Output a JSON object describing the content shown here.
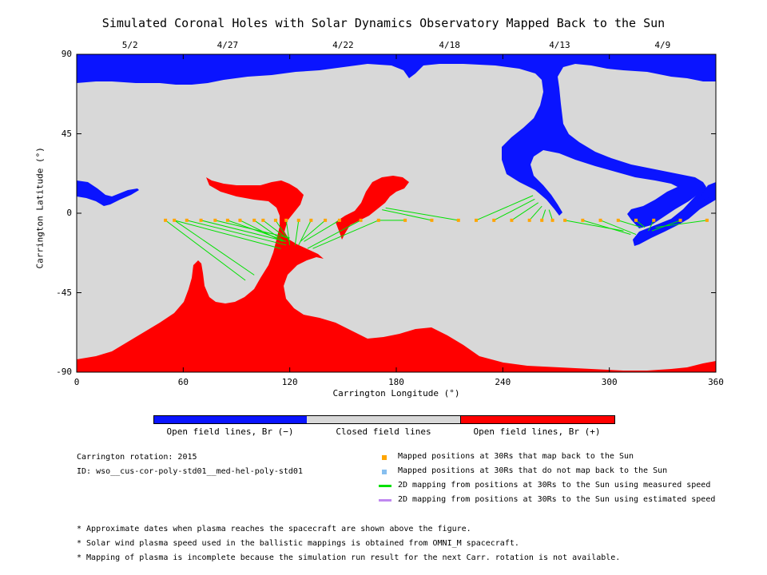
{
  "chart_data": {
    "type": "map",
    "title": "Simulated Coronal Holes with Solar Dynamics Observatory Mapped Back to the Sun",
    "xlabel": "Carrington Longitude (°)",
    "ylabel": "Carrington Latitude (°)",
    "xlim": [
      0,
      360
    ],
    "ylim": [
      -90,
      90
    ],
    "x_ticks": [
      "0",
      "60",
      "120",
      "180",
      "240",
      "300",
      "360"
    ],
    "y_ticks": [
      "90",
      "45",
      "0",
      "-45",
      "-90"
    ],
    "top_dates": [
      {
        "lon": 30,
        "label": "5/2"
      },
      {
        "lon": 85,
        "label": "4/27"
      },
      {
        "lon": 150,
        "label": "4/22"
      },
      {
        "lon": 210,
        "label": "4/18"
      },
      {
        "lon": 272,
        "label": "4/13"
      },
      {
        "lon": 330,
        "label": "4/9"
      }
    ],
    "colors": {
      "open_negative": "#0a14ff",
      "closed": "#d8d8d8",
      "open_positive": "#ff0000",
      "mapped_point": "#ffa500",
      "unmapped_point": "#87bfef",
      "measured_line": "#00e000",
      "estimated_line": "#c088f0"
    },
    "measured_mappings": [
      {
        "from": [
          50,
          -4
        ],
        "to": [
          95,
          -38
        ]
      },
      {
        "from": [
          55,
          -4
        ],
        "to": [
          100,
          -35
        ]
      },
      {
        "from": [
          55,
          -4
        ],
        "to": [
          115,
          -20
        ]
      },
      {
        "from": [
          62,
          -4
        ],
        "to": [
          118,
          -18
        ]
      },
      {
        "from": [
          70,
          -4
        ],
        "to": [
          118,
          -16
        ]
      },
      {
        "from": [
          78,
          -4
        ],
        "to": [
          120,
          -14
        ]
      },
      {
        "from": [
          85,
          -4
        ],
        "to": [
          113,
          -14
        ]
      },
      {
        "from": [
          92,
          -4
        ],
        "to": [
          116,
          -16
        ]
      },
      {
        "from": [
          100,
          -4
        ],
        "to": [
          117,
          -16
        ]
      },
      {
        "from": [
          105,
          -4
        ],
        "to": [
          118,
          -14
        ]
      },
      {
        "from": [
          112,
          -4
        ],
        "to": [
          120,
          -16
        ]
      },
      {
        "from": [
          118,
          -4
        ],
        "to": [
          120,
          -18
        ]
      },
      {
        "from": [
          125,
          -4
        ],
        "to": [
          123,
          -18
        ]
      },
      {
        "from": [
          132,
          -4
        ],
        "to": [
          125,
          -18
        ]
      },
      {
        "from": [
          140,
          -4
        ],
        "to": [
          126,
          -16
        ]
      },
      {
        "from": [
          148,
          -4
        ],
        "to": [
          128,
          -16
        ]
      },
      {
        "from": [
          160,
          -4
        ],
        "to": [
          130,
          -20
        ]
      },
      {
        "from": [
          170,
          -4
        ],
        "to": [
          133,
          -20
        ]
      },
      {
        "from": [
          185,
          -4
        ],
        "to": [
          170,
          -4
        ]
      },
      {
        "from": [
          200,
          -4
        ],
        "to": [
          172,
          2
        ]
      },
      {
        "from": [
          215,
          -4
        ],
        "to": [
          174,
          3
        ]
      },
      {
        "from": [
          225,
          -4
        ],
        "to": [
          257,
          10
        ]
      },
      {
        "from": [
          235,
          -4
        ],
        "to": [
          258,
          8
        ]
      },
      {
        "from": [
          245,
          -4
        ],
        "to": [
          260,
          6
        ]
      },
      {
        "from": [
          255,
          -4
        ],
        "to": [
          262,
          4
        ]
      },
      {
        "from": [
          262,
          -4
        ],
        "to": [
          264,
          2
        ]
      },
      {
        "from": [
          268,
          -4
        ],
        "to": [
          266,
          2
        ]
      },
      {
        "from": [
          275,
          -4
        ],
        "to": [
          308,
          -10
        ]
      },
      {
        "from": [
          285,
          -4
        ],
        "to": [
          312,
          -12
        ]
      },
      {
        "from": [
          295,
          -4
        ],
        "to": [
          315,
          -12
        ]
      },
      {
        "from": [
          305,
          -4
        ],
        "to": [
          318,
          -8
        ]
      },
      {
        "from": [
          315,
          -4
        ],
        "to": [
          320,
          -8
        ]
      },
      {
        "from": [
          325,
          -4
        ],
        "to": [
          322,
          -10
        ]
      },
      {
        "from": [
          340,
          -4
        ],
        "to": [
          324,
          -10
        ]
      },
      {
        "from": [
          355,
          -4
        ],
        "to": [
          326,
          -8
        ]
      }
    ],
    "mapped_point_lons": [
      50,
      55,
      62,
      70,
      78,
      85,
      92,
      100,
      105,
      112,
      118,
      125,
      132,
      140,
      148,
      160,
      170,
      185,
      200,
      215,
      225,
      235,
      245,
      255,
      262,
      268,
      275,
      285,
      295,
      305,
      315,
      325,
      340,
      355
    ],
    "mapped_point_lat": -4,
    "colorbar": {
      "labels": [
        "Open field lines, Br (−)",
        "Closed field lines",
        "Open field lines, Br (+)"
      ]
    }
  },
  "info": {
    "rotation": "Carrington rotation: 2015",
    "id": "ID: wso__cus-cor-poly-std01__med-hel-poly-std01"
  },
  "legend": [
    {
      "kind": "point",
      "color": "#ffa500",
      "label": "Mapped positions at 30Rs that map back to the Sun"
    },
    {
      "kind": "point",
      "color": "#87bfef",
      "label": "Mapped positions at 30Rs that do not map back to the Sun"
    },
    {
      "kind": "line",
      "color": "#00e000",
      "label": "2D mapping from positions at 30Rs to the Sun using measured speed"
    },
    {
      "kind": "line",
      "color": "#c088f0",
      "label": "2D mapping from positions at 30Rs to the Sun using estimated speed"
    }
  ],
  "footnotes": [
    "* Approximate dates when plasma reaches the spacecraft are shown above the figure.",
    "* Solar wind plasma speed used in the ballistic mappings is obtained from OMNI_M spacecraft.",
    "* Mapping of plasma is incomplete because the simulation run result for the next Carr. rotation is not available."
  ]
}
